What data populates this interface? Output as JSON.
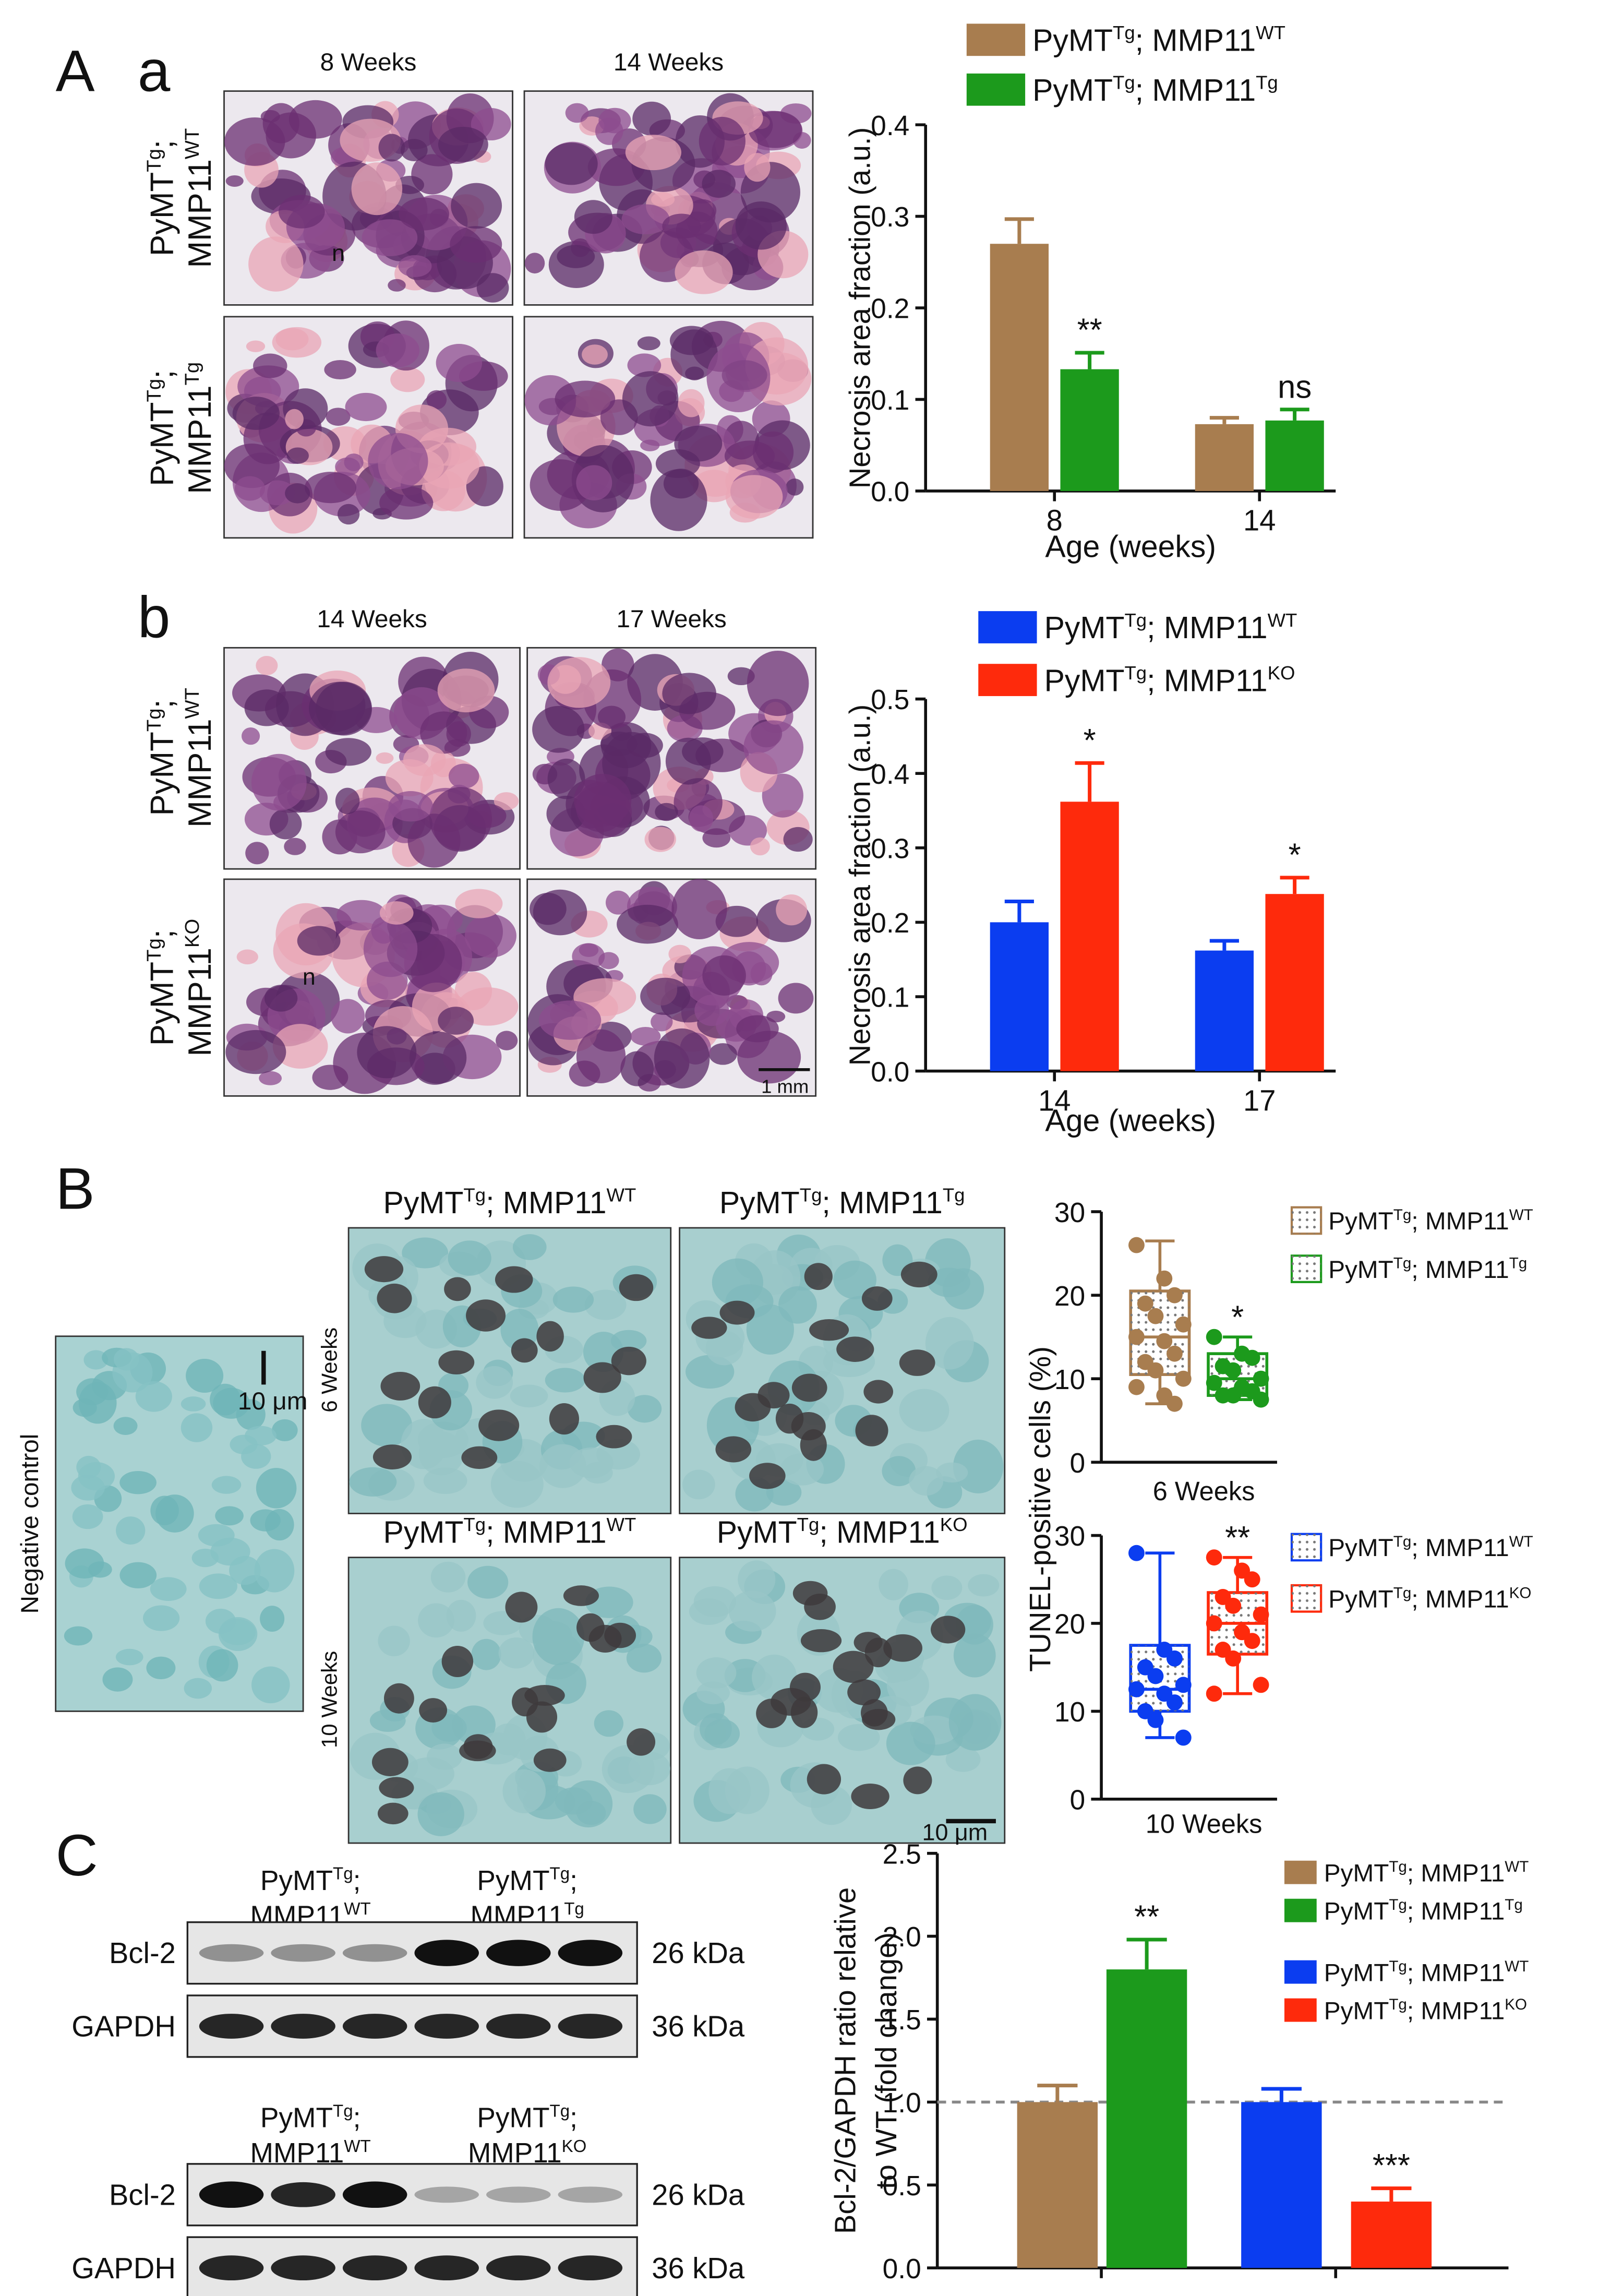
{
  "panel_labels": [
    "A",
    "a",
    "b",
    "B",
    "C"
  ],
  "histology": [
    {
      "columns": [
        "8 Weeks",
        "14 Weeks"
      ],
      "rows": [
        [
          [
            "PyMT",
            "Tg",
            ";"
          ],
          [
            "MMP11",
            "WT"
          ]
        ],
        [
          [
            "PyMT",
            "Tg",
            ";"
          ],
          [
            "MMP11",
            "Tg"
          ]
        ]
      ],
      "annotation": "n"
    },
    {
      "columns": [
        "14 Weeks",
        "17 Weeks"
      ],
      "rows": [
        [
          [
            "PyMT",
            "Tg",
            ";"
          ],
          [
            "MMP11",
            "WT"
          ]
        ],
        [
          [
            "PyMT",
            "Tg",
            ";"
          ],
          [
            "MMP11",
            "KO"
          ]
        ]
      ],
      "annotation": "n",
      "scale_bar": "1 mm"
    }
  ],
  "tunel_images": {
    "negative_control": "Negative control",
    "negative_scale_bar": "10 μm",
    "scale_bar": "10 μm",
    "rows": [
      {
        "label": "6 Weeks",
        "columns": [
          [
            "PyMT",
            "Tg",
            "; MMP11",
            "WT"
          ],
          [
            "PyMT",
            "Tg",
            "; MMP11",
            "Tg"
          ]
        ]
      },
      {
        "label": "10 Weeks",
        "columns": [
          [
            "PyMT",
            "Tg",
            "; MMP11",
            "WT"
          ],
          [
            "PyMT",
            "Tg",
            "; MMP11",
            "KO"
          ]
        ]
      }
    ]
  },
  "western_blot": [
    {
      "groups": [
        [
          [
            "PyMT",
            "Tg",
            ";"
          ],
          [
            "MMP11",
            "WT"
          ]
        ],
        [
          [
            "PyMT",
            "Tg",
            ";"
          ],
          [
            "MMP11",
            "Tg"
          ]
        ]
      ],
      "rows": [
        {
          "name": "Bcl-2",
          "size": "26 kDa"
        },
        {
          "name": "GAPDH",
          "size": "36 kDa"
        }
      ]
    },
    {
      "groups": [
        [
          [
            "PyMT",
            "Tg",
            ";"
          ],
          [
            "MMP11",
            "WT"
          ]
        ],
        [
          [
            "PyMT",
            "Tg",
            ";"
          ],
          [
            "MMP11",
            "KO"
          ]
        ]
      ],
      "rows": [
        {
          "name": "Bcl-2",
          "size": "26 kDa"
        },
        {
          "name": "GAPDH",
          "size": "36 kDa"
        }
      ]
    }
  ],
  "chart_data": [
    {
      "type": "bar",
      "xlabel": "Age (weeks)",
      "ylabel": "Necrosis area fraction (a.u.)",
      "categories": [
        "8",
        "14"
      ],
      "ylim": [
        0,
        0.4
      ],
      "yticks": [
        {
          "value": 0,
          "label": "0.0"
        },
        0.1,
        0.2,
        0.3,
        0.4
      ],
      "series": [
        {
          "name": [
            "PyMT",
            "Tg",
            "; MMP11",
            "WT"
          ],
          "color": "#a87d4f",
          "values": [
            0.27,
            0.073
          ],
          "errors": [
            0.027,
            0.007
          ]
        },
        {
          "name": [
            "PyMT",
            "Tg",
            "; MMP11",
            "Tg"
          ],
          "color": "#1c9a1c",
          "values": [
            0.133,
            0.077
          ],
          "errors": [
            0.018,
            0.012
          ],
          "annotations": [
            "**",
            "ns"
          ]
        }
      ]
    },
    {
      "type": "bar",
      "xlabel": "Age (weeks)",
      "ylabel": "Necrosis area fraction (a.u.)",
      "categories": [
        "14",
        "17"
      ],
      "ylim": [
        0,
        0.5
      ],
      "yticks": [
        {
          "value": 0,
          "label": "0.0"
        },
        0.1,
        0.2,
        0.3,
        0.4,
        0.5
      ],
      "series": [
        {
          "name": [
            "PyMT",
            "Tg",
            "; MMP11",
            "WT"
          ],
          "color": "#0b3df0",
          "values": [
            0.2,
            0.162
          ],
          "errors": [
            0.028,
            0.013
          ]
        },
        {
          "name": [
            "PyMT",
            "Tg",
            "; MMP11",
            "KO"
          ],
          "color": "#fe2a0c",
          "values": [
            0.362,
            0.238
          ],
          "errors": [
            0.052,
            0.022
          ],
          "annotations": [
            "*",
            "*"
          ]
        }
      ]
    },
    {
      "type": "box",
      "xlabel": "6 Weeks",
      "ylabel": "TUNEL-positive cells (%)",
      "ylim": [
        0,
        30
      ],
      "yticks": [
        0,
        10,
        20,
        30
      ],
      "series": [
        {
          "name": [
            "PyMT",
            "Tg",
            "; MMP11",
            "WT"
          ],
          "color": "#a87d4f",
          "min": 7,
          "q1": 10.5,
          "median": 15,
          "q3": 20.5,
          "max": 26.5,
          "points": [
            26,
            22,
            20,
            19,
            17.5,
            16.5,
            15,
            14.5,
            13,
            12,
            11,
            10,
            9,
            8,
            7
          ]
        },
        {
          "name": [
            "PyMT",
            "Tg",
            "; MMP11",
            "Tg"
          ],
          "color": "#1c9a1c",
          "min": 7.5,
          "q1": 8,
          "median": 10,
          "q3": 13,
          "max": 15,
          "points": [
            15,
            13,
            12.5,
            11.5,
            11,
            10,
            9.5,
            9,
            8.5,
            8,
            8,
            7.5
          ],
          "annotation": "*"
        }
      ]
    },
    {
      "type": "box",
      "xlabel": "10 Weeks",
      "ylim": [
        0,
        30
      ],
      "yticks": [
        0,
        10,
        20,
        30
      ],
      "series": [
        {
          "name": [
            "PyMT",
            "Tg",
            "; MMP11",
            "WT"
          ],
          "color": "#0b3df0",
          "min": 7,
          "q1": 10,
          "median": 12.5,
          "q3": 17.5,
          "max": 28,
          "points": [
            28,
            17,
            16,
            15,
            14,
            13,
            12.5,
            12,
            11,
            10,
            9,
            7
          ]
        },
        {
          "name": [
            "PyMT",
            "Tg",
            "; MMP11",
            "KO"
          ],
          "color": "#fe2a0c",
          "min": 12,
          "q1": 16.5,
          "median": 20,
          "q3": 23.5,
          "max": 27.5,
          "points": [
            27.5,
            26,
            25,
            23,
            22,
            21,
            20,
            19,
            18,
            17,
            16,
            13,
            12
          ],
          "annotation": "**"
        }
      ]
    },
    {
      "type": "bar",
      "ylabel": [
        "Bcl-2/GAPDH ratio relative",
        "to WT (fold change)"
      ],
      "ylim": [
        0,
        2.5
      ],
      "yticks": [
        {
          "value": 0,
          "label": "0.0"
        },
        0.5,
        {
          "value": 1,
          "label": "1.0"
        },
        1.5,
        {
          "value": 2,
          "label": "2.0"
        },
        2.5
      ],
      "reference_line": 1,
      "series": [
        {
          "name": [
            "PyMT",
            "Tg",
            "; MMP11",
            "WT"
          ],
          "color": "#a87d4f",
          "values": [
            1.0
          ],
          "errors": [
            0.1
          ]
        },
        {
          "name": [
            "PyMT",
            "Tg",
            "; MMP11",
            "Tg"
          ],
          "color": "#1c9a1c",
          "values": [
            1.8
          ],
          "errors": [
            0.18
          ],
          "annotations": [
            "**"
          ]
        },
        {
          "name": [
            "PyMT",
            "Tg",
            "; MMP11",
            "WT"
          ],
          "color": "#0b3df0",
          "values": [
            1.0
          ],
          "errors": [
            0.08
          ]
        },
        {
          "name": [
            "PyMT",
            "Tg",
            "; MMP11",
            "KO"
          ],
          "color": "#fe2a0c",
          "values": [
            0.4
          ],
          "errors": [
            0.08
          ],
          "annotations": [
            "***"
          ]
        }
      ]
    }
  ]
}
